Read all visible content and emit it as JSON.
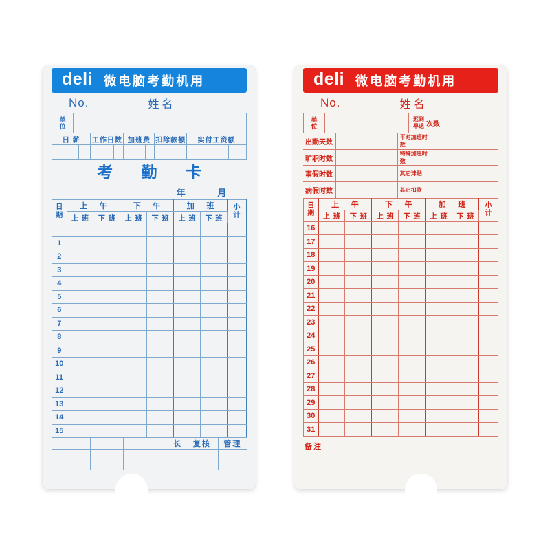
{
  "cards": {
    "blue": {
      "accent_color": "#1484DC",
      "brand": "deli",
      "header_title": "微电脑考勤机用",
      "no_label": "No.",
      "name_label": "姓名",
      "unit_label": "单\n位",
      "pay_headers": [
        "日 薪",
        "工作日数",
        "加班费",
        "扣除款额",
        "实付工资额"
      ],
      "card_title": "考勤卡",
      "year_label": "年",
      "month_label": "月",
      "table": {
        "date_label": "日\n期",
        "groups": [
          "上午",
          "下午",
          "加班"
        ],
        "sub_in": "上班",
        "sub_out": "下班",
        "total_label": "小\n计",
        "rows": [
          "",
          "1",
          "2",
          "3",
          "4",
          "5",
          "6",
          "7",
          "8",
          "9",
          "10",
          "11",
          "12",
          "13",
          "14",
          "15"
        ]
      },
      "footer_labels": {
        "chief": "长",
        "review": "复核",
        "manage": "管理"
      }
    },
    "red": {
      "accent_color": "#E5211A",
      "brand": "deli",
      "header_title": "微电脑考勤机用",
      "no_label": "No.",
      "name_label": "姓名",
      "unit_label": "单\n位",
      "late_label": "迟到\n早退",
      "count_label": "次数",
      "info_rows": [
        {
          "left": "出勤天数",
          "right": "平时加班时数"
        },
        {
          "left": "旷职时数",
          "right": "特殊加班时数"
        },
        {
          "left": "事假时数",
          "right": "其它津贴"
        },
        {
          "left": "病假时数",
          "right": "其它扣款"
        }
      ],
      "table": {
        "date_label": "日\n期",
        "groups": [
          "上午",
          "下午",
          "加班"
        ],
        "sub_in": "上班",
        "sub_out": "下班",
        "total_label": "小\n计",
        "rows": [
          "16",
          "17",
          "18",
          "19",
          "20",
          "21",
          "22",
          "23",
          "24",
          "25",
          "26",
          "27",
          "28",
          "29",
          "30",
          "31"
        ]
      },
      "remark_label": "备注"
    }
  }
}
